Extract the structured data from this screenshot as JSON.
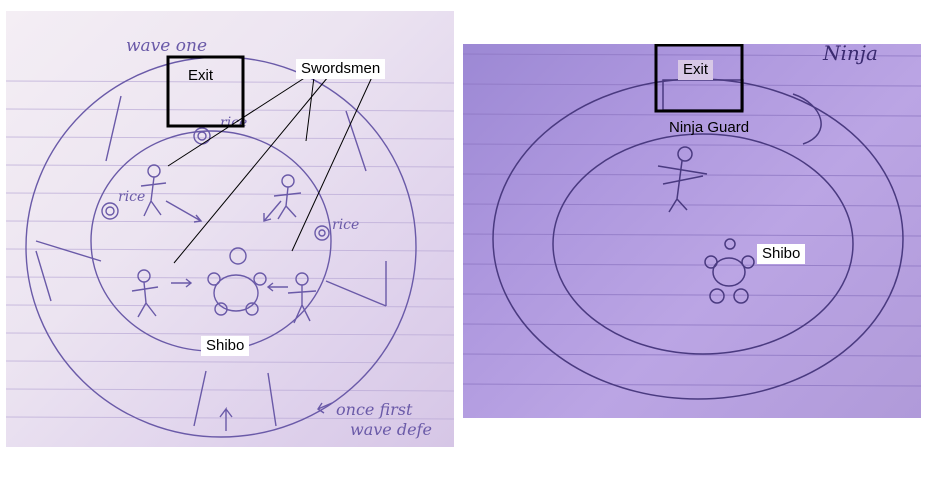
{
  "left_panel": {
    "handwritten": {
      "wave_title": "wave one",
      "rice_1": "rice",
      "rice_2": "rice",
      "rice_3": "rice",
      "note_line1": "once first",
      "note_line2": "wave defe"
    },
    "labels": {
      "exit": "Exit",
      "swordsmen": "Swordsmen",
      "shibo": "Shibo"
    }
  },
  "right_panel": {
    "handwritten": {
      "corner_word": "Ninja"
    },
    "labels": {
      "exit": "Exit",
      "ninja_guard": "Ninja Guard",
      "shibo": "Shibo"
    }
  },
  "colors": {
    "pencil": "#6a5aa8",
    "left_paper": "#ece4f1",
    "right_paper": "#ad97de",
    "callout_bg": "#ffffff",
    "box_stroke": "#000000"
  }
}
